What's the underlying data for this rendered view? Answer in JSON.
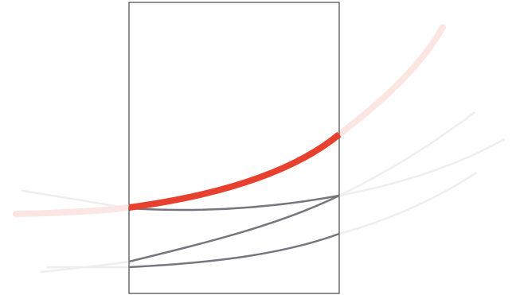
{
  "diagram": {
    "style": {
      "highlight_color": "#e8402f",
      "curve_color": "#76767e",
      "ghost_curve_color": "#eeeeee",
      "highlight_ghost_color": "#fce6e3",
      "frame_color": "#222222",
      "background": "#ffffff"
    },
    "curves": [
      {
        "name": "highlighted-curve",
        "emphasis": "primary"
      },
      {
        "name": "gray-curve-top",
        "emphasis": "secondary"
      },
      {
        "name": "gray-curve-middle",
        "emphasis": "secondary"
      },
      {
        "name": "gray-curve-bottom",
        "emphasis": "secondary"
      }
    ]
  }
}
